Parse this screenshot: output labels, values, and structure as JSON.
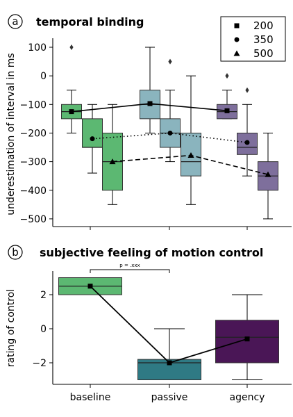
{
  "colors": {
    "baseline": "#5cb872",
    "passive": "#8ab4be",
    "agency": "#7e6f9c",
    "passive_b": "#2f7a84",
    "agency_b": "#4a1656"
  },
  "chart_data": [
    {
      "type": "box",
      "panel_label": "a",
      "title": "temporal binding",
      "xlabel": "",
      "ylabel": "underestimation of interval in ms",
      "ylim": [
        -530,
        130
      ],
      "yticks": [
        100,
        0,
        -100,
        -200,
        -300,
        -400,
        -500
      ],
      "ytick_labels": [
        "100",
        "0",
        "−100",
        "−200",
        "−300",
        "−400",
        "−500"
      ],
      "legend": {
        "position": "top-right",
        "entries": [
          {
            "label": "200",
            "marker": "square"
          },
          {
            "label": "350",
            "marker": "circle"
          },
          {
            "label": "500",
            "marker": "triangle"
          }
        ]
      },
      "groups": [
        "baseline",
        "passive",
        "agency"
      ],
      "boxes": [
        {
          "group": "baseline",
          "series": "200",
          "whislo": -200,
          "q1": -150,
          "med": -125,
          "q3": -100,
          "whishi": -50,
          "fliers": [
            100
          ]
        },
        {
          "group": "baseline",
          "series": "350",
          "whislo": -340,
          "q1": -250,
          "med": -250,
          "q3": -150,
          "whishi": -100,
          "fliers": []
        },
        {
          "group": "baseline",
          "series": "500",
          "whislo": -450,
          "q1": -400,
          "med": -300,
          "q3": -200,
          "whishi": -100,
          "fliers": []
        },
        {
          "group": "passive",
          "series": "200",
          "whislo": -200,
          "q1": -150,
          "med": -100,
          "q3": -50,
          "whishi": 100,
          "fliers": []
        },
        {
          "group": "passive",
          "series": "350",
          "whislo": -300,
          "q1": -250,
          "med": -200,
          "q3": -150,
          "whishi": -50,
          "fliers": [
            50
          ]
        },
        {
          "group": "passive",
          "series": "500",
          "whislo": -450,
          "q1": -350,
          "med": -300,
          "q3": -200,
          "whishi": 0,
          "fliers": []
        },
        {
          "group": "agency",
          "series": "200",
          "whislo": -150,
          "q1": -150,
          "med": -125,
          "q3": -100,
          "whishi": -50,
          "fliers": [
            0
          ]
        },
        {
          "group": "agency",
          "series": "350",
          "whislo": -350,
          "q1": -275,
          "med": -250,
          "q3": -200,
          "whishi": -100,
          "fliers": [
            -50
          ]
        },
        {
          "group": "agency",
          "series": "500",
          "whislo": -500,
          "q1": -400,
          "med": -350,
          "q3": -300,
          "whishi": -200,
          "fliers": []
        }
      ],
      "series": [
        {
          "name": "200",
          "marker": "square",
          "linestyle": "solid",
          "values": [
            -125,
            -97,
            -122
          ]
        },
        {
          "name": "350",
          "marker": "circle",
          "linestyle": "dotted",
          "values": [
            -220,
            -200,
            -233
          ]
        },
        {
          "name": "500",
          "marker": "triangle",
          "linestyle": "dashed",
          "values": [
            -300,
            -278,
            -345
          ]
        }
      ]
    },
    {
      "type": "box",
      "panel_label": "b",
      "title": "subjective feeling of motion control",
      "xlabel": "",
      "ylabel": "rating of control",
      "ylim": [
        -3.25,
        3.25
      ],
      "yticks": [
        2,
        0,
        -2
      ],
      "ytick_labels": [
        "2",
        "0",
        "−2"
      ],
      "categories": [
        "baseline",
        "passive",
        "agency"
      ],
      "significance": {
        "from": "baseline",
        "to": "passive",
        "label": "p = .xxx"
      },
      "boxes": [
        {
          "group": "baseline",
          "whislo": 2,
          "q1": 2,
          "med": 2.5,
          "q3": 3,
          "whishi": 3,
          "fliers": []
        },
        {
          "group": "passive",
          "whislo": -3,
          "q1": -3,
          "med": -2,
          "q3": -1.8,
          "whishi": 0,
          "fliers": []
        },
        {
          "group": "agency",
          "whislo": -3,
          "q1": -2,
          "med": -0.5,
          "q3": 0.5,
          "whishi": 2,
          "fliers": []
        }
      ],
      "series": [
        {
          "marker": "square",
          "linestyle": "solid",
          "values": [
            2.5,
            -2,
            -0.6
          ]
        }
      ]
    }
  ]
}
